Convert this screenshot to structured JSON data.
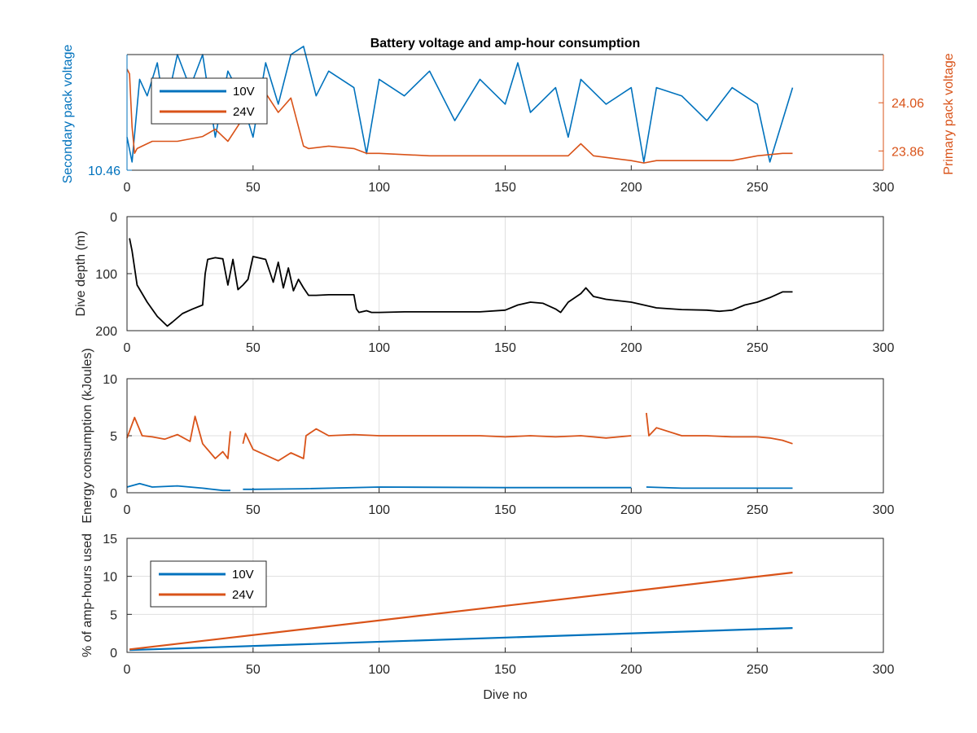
{
  "figure": {
    "title": "Battery voltage and amp-hour consumption",
    "x_label": "Dive no",
    "colors": {
      "blue": "#0072BD",
      "orange": "#D95319",
      "black": "#000000",
      "grid": "#dfdfdf"
    }
  },
  "chart_data": [
    {
      "type": "line",
      "title": "Battery voltage and amp-hour consumption",
      "xlabel": "",
      "ylabel_left": "Secondary pack voltage",
      "ylabel_right": "Primary pack voltage",
      "xlim": [
        0,
        300
      ],
      "x_ticks": [
        "0",
        "50",
        "100",
        "150",
        "200",
        "250",
        "300"
      ],
      "ylim_left": [
        10.46,
        10.6
      ],
      "y_ticks_left": [
        "10.46"
      ],
      "ylim_right": [
        23.78,
        24.26
      ],
      "y_ticks_right": [
        "23.86",
        "24.06"
      ],
      "grid": false,
      "legend_position": "top-left",
      "legend": [
        "10V",
        "24V"
      ],
      "series": [
        {
          "name": "10V",
          "axis": "left",
          "x": [
            0,
            2,
            5,
            8,
            12,
            15,
            20,
            25,
            30,
            35,
            40,
            45,
            50,
            55,
            60,
            65,
            70,
            75,
            80,
            90,
            95,
            100,
            110,
            120,
            130,
            140,
            150,
            155,
            160,
            170,
            175,
            180,
            190,
            200,
            205,
            210,
            220,
            230,
            240,
            250,
            255,
            260,
            264
          ],
          "y": [
            10.5,
            10.47,
            10.57,
            10.55,
            10.59,
            10.53,
            10.6,
            10.56,
            10.6,
            10.5,
            10.58,
            10.55,
            10.5,
            10.59,
            10.54,
            10.6,
            10.61,
            10.55,
            10.58,
            10.56,
            10.48,
            10.57,
            10.55,
            10.58,
            10.52,
            10.57,
            10.54,
            10.59,
            10.53,
            10.56,
            10.5,
            10.57,
            10.54,
            10.56,
            10.47,
            10.56,
            10.55,
            10.52,
            10.56,
            10.54,
            10.47,
            10.52,
            10.56
          ]
        },
        {
          "name": "24V",
          "axis": "right",
          "x": [
            0,
            1,
            2,
            3,
            4,
            6,
            10,
            20,
            30,
            35,
            40,
            45,
            50,
            55,
            60,
            65,
            70,
            72,
            80,
            90,
            95,
            100,
            120,
            140,
            160,
            175,
            180,
            185,
            200,
            205,
            210,
            230,
            240,
            250,
            260,
            264
          ],
          "y": [
            24.2,
            24.18,
            23.96,
            23.85,
            23.87,
            23.88,
            23.9,
            23.9,
            23.92,
            23.95,
            23.9,
            23.98,
            24.05,
            24.1,
            24.02,
            24.08,
            23.88,
            23.87,
            23.88,
            23.87,
            23.85,
            23.85,
            23.84,
            23.84,
            23.84,
            23.84,
            23.89,
            23.84,
            23.82,
            23.81,
            23.82,
            23.82,
            23.82,
            23.84,
            23.85,
            23.85
          ]
        }
      ]
    },
    {
      "type": "line",
      "title": "",
      "xlabel": "",
      "ylabel": "Dive depth (m)",
      "xlim": [
        0,
        300
      ],
      "x_ticks": [
        "0",
        "50",
        "100",
        "150",
        "200",
        "250",
        "300"
      ],
      "ylim": [
        0,
        200
      ],
      "y_reversed": true,
      "y_ticks": [
        "0",
        "100",
        "200"
      ],
      "grid": true,
      "series": [
        {
          "name": "",
          "x": [
            1,
            2,
            4,
            8,
            12,
            16,
            18,
            22,
            26,
            30,
            31,
            32,
            35,
            38,
            40,
            42,
            44,
            46,
            48,
            50,
            52,
            55,
            58,
            60,
            62,
            64,
            66,
            68,
            70,
            72,
            75,
            80,
            90,
            91,
            92,
            95,
            97,
            100,
            110,
            120,
            130,
            140,
            150,
            155,
            160,
            165,
            170,
            172,
            175,
            180,
            182,
            185,
            190,
            200,
            210,
            220,
            230,
            235,
            240,
            245,
            250,
            255,
            260,
            264
          ],
          "y": [
            38,
            60,
            120,
            150,
            175,
            192,
            185,
            170,
            162,
            155,
            100,
            75,
            72,
            74,
            120,
            75,
            128,
            120,
            110,
            70,
            72,
            75,
            115,
            80,
            125,
            90,
            130,
            110,
            125,
            138,
            138,
            137,
            137,
            162,
            168,
            165,
            168,
            168,
            167,
            167,
            167,
            167,
            164,
            155,
            150,
            152,
            162,
            168,
            150,
            135,
            125,
            140,
            145,
            150,
            160,
            163,
            164,
            166,
            164,
            155,
            150,
            142,
            132,
            132
          ]
        }
      ]
    },
    {
      "type": "line",
      "title": "",
      "xlabel": "",
      "ylabel": "Energy consumption (kJoules)",
      "xlim": [
        0,
        300
      ],
      "x_ticks": [
        "0",
        "50",
        "100",
        "150",
        "200",
        "250",
        "300"
      ],
      "ylim": [
        0,
        10
      ],
      "y_ticks": [
        "0",
        "5",
        "10"
      ],
      "grid": true,
      "series": [
        {
          "name": "24V",
          "x": [
            0,
            3,
            6,
            10,
            15,
            20,
            25,
            27,
            30,
            35,
            38,
            40,
            41,
            null,
            46,
            47,
            50,
            55,
            60,
            65,
            70,
            71,
            75,
            80,
            90,
            100,
            110,
            120,
            130,
            140,
            150,
            160,
            170,
            180,
            190,
            200,
            null,
            206,
            207,
            210,
            220,
            230,
            240,
            250,
            255,
            260,
            264
          ],
          "y": [
            4.8,
            6.6,
            5.0,
            4.9,
            4.7,
            5.1,
            4.5,
            6.7,
            4.3,
            3.0,
            3.6,
            3.0,
            5.4,
            null,
            4.3,
            5.2,
            3.8,
            3.3,
            2.8,
            3.5,
            3.0,
            5.0,
            5.6,
            5.0,
            5.1,
            5.0,
            5.0,
            5.0,
            5.0,
            5.0,
            4.9,
            5.0,
            4.9,
            5.0,
            4.8,
            5.0,
            null,
            7.0,
            5.0,
            5.7,
            5.0,
            5.0,
            4.9,
            4.9,
            4.8,
            4.6,
            4.3
          ]
        },
        {
          "name": "10V",
          "x": [
            0,
            5,
            10,
            20,
            30,
            38,
            41,
            null,
            46,
            50,
            70,
            100,
            150,
            200,
            null,
            206,
            220,
            264
          ],
          "y": [
            0.5,
            0.8,
            0.5,
            0.6,
            0.4,
            0.2,
            0.2,
            null,
            0.3,
            0.3,
            0.35,
            0.5,
            0.45,
            0.45,
            null,
            0.5,
            0.4,
            0.4
          ]
        }
      ]
    },
    {
      "type": "line",
      "title": "",
      "xlabel": "Dive no",
      "ylabel": "% of amp-hours used",
      "xlim": [
        0,
        300
      ],
      "x_ticks": [
        "0",
        "50",
        "100",
        "150",
        "200",
        "250",
        "300"
      ],
      "ylim": [
        0,
        15
      ],
      "y_ticks": [
        "0",
        "5",
        "10",
        "15"
      ],
      "grid": true,
      "legend_position": "top-left",
      "legend": [
        "10V",
        "24V"
      ],
      "series": [
        {
          "name": "10V",
          "x": [
            1,
            264
          ],
          "y": [
            0.3,
            3.2
          ]
        },
        {
          "name": "24V",
          "x": [
            1,
            264
          ],
          "y": [
            0.4,
            10.5
          ]
        }
      ]
    }
  ]
}
